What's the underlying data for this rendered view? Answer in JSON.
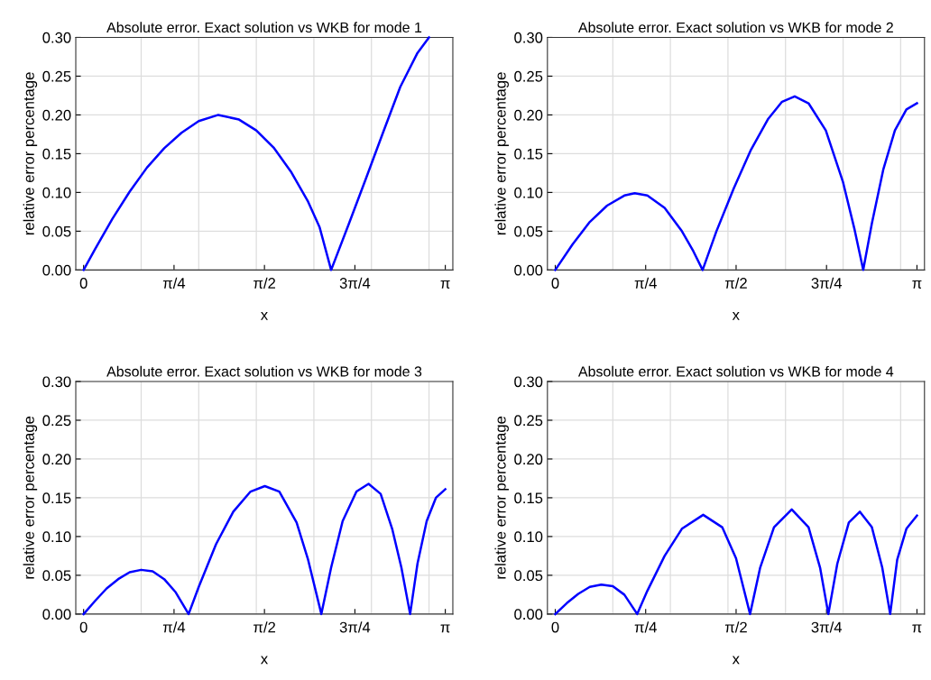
{
  "chart_data": [
    {
      "type": "line",
      "title": "Absolute error. Exact solution vs WKB for mode 1",
      "xlabel": "x",
      "ylabel": "relative error percentage",
      "xlim": [
        -0.068,
        3.207
      ],
      "ylim": [
        0,
        0.3
      ],
      "xticks": [
        0,
        {
          "value": 0.7854,
          "label": "π/4"
        },
        {
          "value": 1.5708,
          "label": "π/2"
        },
        {
          "value": 2.3562,
          "label": "3π/4"
        },
        {
          "value": 3.1416,
          "label": "π"
        }
      ],
      "yticks": [
        {
          "value": 0,
          "label": "0.00"
        },
        0.05,
        {
          "value": 0.1,
          "label": "0.10"
        },
        0.15,
        {
          "value": 0.2,
          "label": "0.20"
        },
        0.25,
        {
          "value": 0.3,
          "label": "0.30"
        }
      ],
      "grid": "y",
      "line_style": "solid",
      "ref_lines": [
        {
          "axis": "x",
          "value": 0.5,
          "color": "#dddddd"
        },
        {
          "axis": "x",
          "value": 1.0,
          "color": "#dddddd"
        },
        {
          "axis": "x",
          "value": 1.5,
          "color": "#dddddd"
        },
        {
          "axis": "x",
          "value": 2.0,
          "color": "#dddddd"
        },
        {
          "axis": "x",
          "value": 2.5,
          "color": "#dddddd"
        },
        {
          "axis": "x",
          "value": 3.0,
          "color": "#dddddd"
        }
      ],
      "x": [
        0,
        0.1,
        0.25,
        0.4,
        0.55,
        0.7,
        0.85,
        1.0,
        1.17,
        1.35,
        1.5,
        1.65,
        1.8,
        1.95,
        2.05,
        2.15,
        2.3,
        2.45,
        2.6,
        2.75,
        2.9,
        3.0
      ],
      "series": [
        {
          "color": "#0000ff",
          "values": [
            0,
            0.027,
            0.066,
            0.101,
            0.132,
            0.157,
            0.177,
            0.192,
            0.2,
            0.194,
            0.18,
            0.158,
            0.127,
            0.088,
            0.055,
            0,
            0.058,
            0.117,
            0.177,
            0.236,
            0.28,
            0.3
          ]
        }
      ]
    },
    {
      "type": "line",
      "title": "Absolute error. Exact solution vs WKB for mode 2",
      "xlabel": "x",
      "ylabel": "relative error percentage",
      "xlim": [
        -0.068,
        3.207
      ],
      "ylim": [
        0,
        0.3
      ],
      "xticks": [
        0,
        {
          "value": 0.7854,
          "label": "π/4"
        },
        {
          "value": 1.5708,
          "label": "π/2"
        },
        {
          "value": 2.3562,
          "label": "3π/4"
        },
        {
          "value": 3.1416,
          "label": "π"
        }
      ],
      "yticks": [
        {
          "value": 0,
          "label": "0.00"
        },
        0.05,
        {
          "value": 0.1,
          "label": "0.10"
        },
        0.15,
        {
          "value": 0.2,
          "label": "0.20"
        },
        0.25,
        {
          "value": 0.3,
          "label": "0.30"
        }
      ],
      "grid": "y",
      "line_style": "solid",
      "ref_lines": [
        {
          "axis": "x",
          "value": 0.5,
          "color": "#dddddd"
        },
        {
          "axis": "x",
          "value": 1.0,
          "color": "#dddddd"
        },
        {
          "axis": "x",
          "value": 1.5,
          "color": "#dddddd"
        },
        {
          "axis": "x",
          "value": 2.0,
          "color": "#dddddd"
        },
        {
          "axis": "x",
          "value": 2.5,
          "color": "#dddddd"
        },
        {
          "axis": "x",
          "value": 3.0,
          "color": "#dddddd"
        }
      ],
      "x": [
        0,
        0.15,
        0.3,
        0.45,
        0.6,
        0.69,
        0.8,
        0.95,
        1.1,
        1.2,
        1.28,
        1.4,
        1.55,
        1.7,
        1.85,
        1.97,
        2.08,
        2.2,
        2.35,
        2.5,
        2.6,
        2.675,
        2.75,
        2.85,
        2.95,
        3.05,
        3.1416
      ],
      "series": [
        {
          "color": "#0000ff",
          "values": [
            0,
            0.033,
            0.062,
            0.083,
            0.096,
            0.099,
            0.096,
            0.08,
            0.05,
            0.024,
            0,
            0.05,
            0.105,
            0.155,
            0.195,
            0.217,
            0.224,
            0.215,
            0.18,
            0.113,
            0.052,
            0,
            0.06,
            0.13,
            0.18,
            0.207,
            0.215
          ]
        }
      ]
    },
    {
      "type": "line",
      "title": "Absolute error. Exact solution vs WKB for mode 3",
      "xlabel": "x",
      "ylabel": "relative error percentage",
      "xlim": [
        -0.068,
        3.207
      ],
      "ylim": [
        0,
        0.3
      ],
      "xticks": [
        0,
        {
          "value": 0.7854,
          "label": "π/4"
        },
        {
          "value": 1.5708,
          "label": "π/2"
        },
        {
          "value": 2.3562,
          "label": "3π/4"
        },
        {
          "value": 3.1416,
          "label": "π"
        }
      ],
      "yticks": [
        {
          "value": 0,
          "label": "0.00"
        },
        0.05,
        {
          "value": 0.1,
          "label": "0.10"
        },
        0.15,
        {
          "value": 0.2,
          "label": "0.20"
        },
        0.25,
        {
          "value": 0.3,
          "label": "0.30"
        }
      ],
      "grid": "y",
      "line_style": "solid",
      "ref_lines": [
        {
          "axis": "x",
          "value": 0.5,
          "color": "#dddddd"
        },
        {
          "axis": "x",
          "value": 1.0,
          "color": "#dddddd"
        },
        {
          "axis": "x",
          "value": 1.5,
          "color": "#dddddd"
        },
        {
          "axis": "x",
          "value": 2.0,
          "color": "#dddddd"
        },
        {
          "axis": "x",
          "value": 2.5,
          "color": "#dddddd"
        },
        {
          "axis": "x",
          "value": 3.0,
          "color": "#dddddd"
        }
      ],
      "x": [
        0,
        0.1,
        0.2,
        0.3,
        0.4,
        0.5,
        0.6,
        0.7,
        0.8,
        0.912,
        1.0,
        1.15,
        1.3,
        1.45,
        1.574,
        1.7,
        1.85,
        1.95,
        2.065,
        2.15,
        2.25,
        2.37,
        2.475,
        2.58,
        2.68,
        2.76,
        2.836,
        2.9,
        2.98,
        3.06,
        3.1416
      ],
      "series": [
        {
          "color": "#0000ff",
          "values": [
            0,
            0.017,
            0.033,
            0.045,
            0.054,
            0.057,
            0.055,
            0.045,
            0.028,
            0,
            0.035,
            0.09,
            0.132,
            0.158,
            0.165,
            0.158,
            0.118,
            0.07,
            0,
            0.06,
            0.12,
            0.158,
            0.168,
            0.155,
            0.11,
            0.06,
            0,
            0.065,
            0.12,
            0.15,
            0.161
          ]
        }
      ]
    },
    {
      "type": "line",
      "title": "Absolute error. Exact solution vs WKB for mode 4",
      "xlabel": "x",
      "ylabel": "relative error percentage",
      "xlim": [
        -0.068,
        3.207
      ],
      "ylim": [
        0,
        0.3
      ],
      "xticks": [
        0,
        {
          "value": 0.7854,
          "label": "π/4"
        },
        {
          "value": 1.5708,
          "label": "π/2"
        },
        {
          "value": 2.3562,
          "label": "3π/4"
        },
        {
          "value": 3.1416,
          "label": "π"
        }
      ],
      "yticks": [
        {
          "value": 0,
          "label": "0.00"
        },
        0.05,
        {
          "value": 0.1,
          "label": "0.10"
        },
        0.15,
        {
          "value": 0.2,
          "label": "0.20"
        },
        0.25,
        {
          "value": 0.3,
          "label": "0.30"
        }
      ],
      "grid": "y",
      "line_style": "solid",
      "ref_lines": [
        {
          "axis": "x",
          "value": 0.5,
          "color": "#dddddd"
        },
        {
          "axis": "x",
          "value": 1.0,
          "color": "#dddddd"
        },
        {
          "axis": "x",
          "value": 1.5,
          "color": "#dddddd"
        },
        {
          "axis": "x",
          "value": 2.0,
          "color": "#dddddd"
        },
        {
          "axis": "x",
          "value": 2.5,
          "color": "#dddddd"
        },
        {
          "axis": "x",
          "value": 3.0,
          "color": "#dddddd"
        }
      ],
      "x": [
        0,
        0.1,
        0.2,
        0.3,
        0.4,
        0.5,
        0.6,
        0.712,
        0.8,
        0.95,
        1.1,
        1.285,
        1.45,
        1.57,
        1.692,
        1.78,
        1.9,
        2.054,
        2.2,
        2.3,
        2.372,
        2.45,
        2.55,
        2.646,
        2.75,
        2.84,
        2.909,
        2.97,
        3.05,
        3.1416
      ],
      "series": [
        {
          "color": "#0000ff",
          "values": [
            0,
            0.014,
            0.026,
            0.035,
            0.038,
            0.036,
            0.025,
            0,
            0.03,
            0.075,
            0.11,
            0.128,
            0.112,
            0.072,
            0,
            0.06,
            0.112,
            0.135,
            0.112,
            0.06,
            0,
            0.065,
            0.118,
            0.132,
            0.112,
            0.06,
            0,
            0.07,
            0.11,
            0.127
          ]
        }
      ]
    }
  ]
}
